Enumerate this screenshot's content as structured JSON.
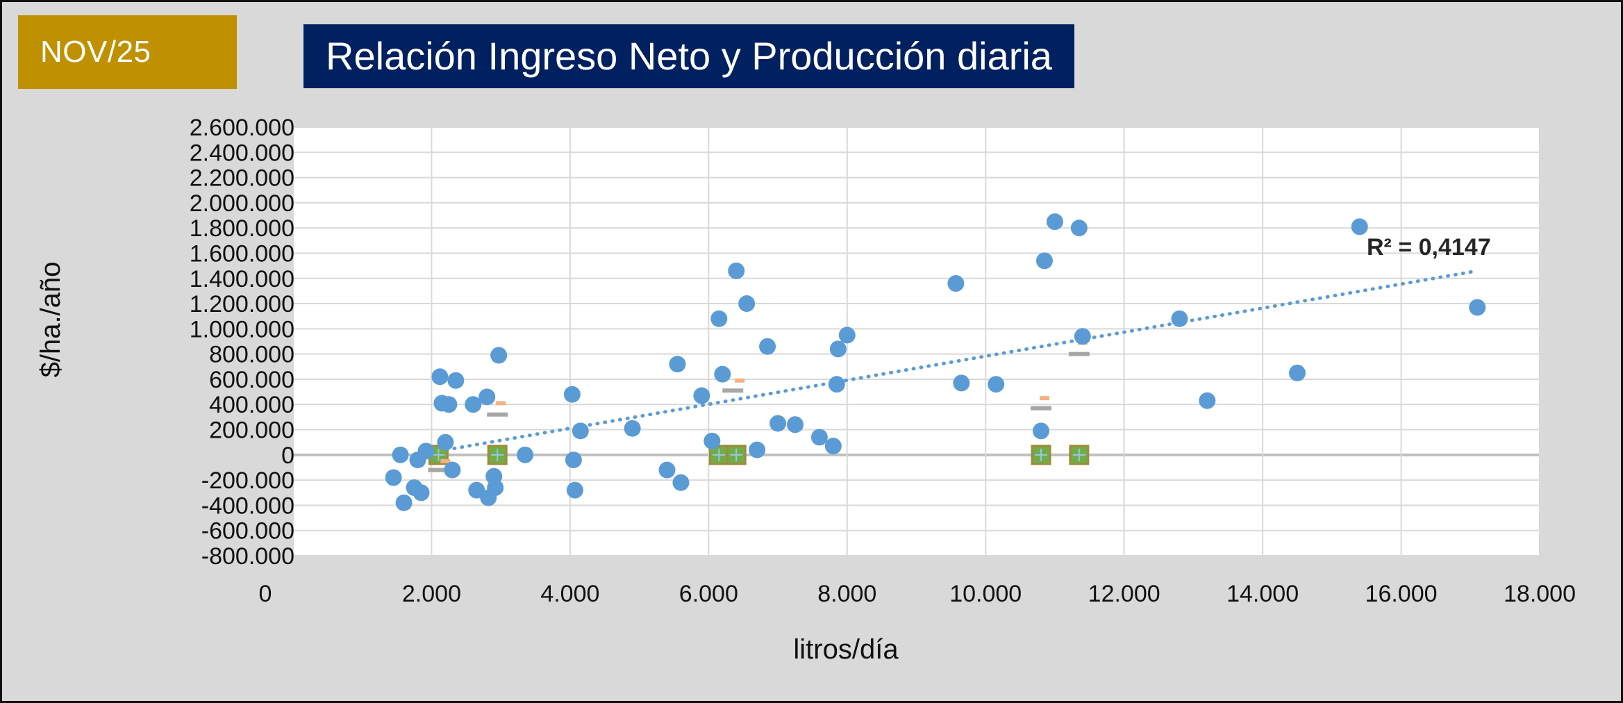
{
  "header": {
    "badge_label": "NOV/25",
    "title": "Relación Ingreso Neto y Producción diaria"
  },
  "chart_data": {
    "type": "scatter",
    "title": "Relación Ingreso Neto y Producción diaria",
    "xlabel": "litros/día",
    "ylabel": "$/ha./año",
    "xlim": [
      0,
      18000
    ],
    "ylim": [
      -800000,
      2600000
    ],
    "x_ticks": [
      0,
      2000,
      4000,
      6000,
      8000,
      10000,
      12000,
      14000,
      16000,
      18000
    ],
    "x_tick_labels": [
      "0",
      "2.000",
      "4.000",
      "6.000",
      "8.000",
      "10.000",
      "12.000",
      "14.000",
      "16.000",
      "18.000"
    ],
    "y_ticks": [
      2600000,
      2400000,
      2200000,
      2000000,
      1800000,
      1600000,
      1400000,
      1200000,
      1000000,
      800000,
      600000,
      400000,
      200000,
      0,
      -200000,
      -400000,
      -600000,
      -800000
    ],
    "y_tick_labels": [
      "2.600.000",
      "2.400.000",
      "2.200.000",
      "2.000.000",
      "1.800.000",
      "1.600.000",
      "1.400.000",
      "1.200.000",
      "1.000.000",
      "800.000",
      "600.000",
      "400.000",
      "200.000",
      "0",
      "-200.000",
      "-400.000",
      "-600.000",
      "-800.000"
    ],
    "grid": true,
    "legend": "none",
    "colors": {
      "points": "#5b9bd5",
      "trendline": "#5b9bd5",
      "square_fill": "#70ad47",
      "square_edge": "#a08a3c",
      "cross": "#9dc3e6",
      "dash_gray": "#a6a6a6",
      "dash_orange": "#f4b183",
      "zero_line": "#bfbfbf",
      "grid": "#d9d9d9"
    },
    "series": [
      {
        "marker": "circle",
        "x": [
          1450,
          1550,
          1600,
          1750,
          1800,
          1850,
          1920,
          2120,
          2150,
          2200,
          2250,
          2300,
          2350,
          2600,
          2650,
          2800,
          2820,
          2900,
          2920,
          2970,
          3350,
          4030,
          4050,
          4070,
          4150,
          4900,
          5400,
          5550,
          5600,
          5900,
          6050,
          6150,
          6200,
          6400,
          6550,
          6700,
          6850,
          7000,
          7250,
          7600,
          7800,
          7850,
          7870,
          8000,
          9570,
          9650,
          10150,
          10800,
          10850,
          11000,
          11350,
          11400,
          12800,
          13200,
          14500,
          15400,
          17100
        ],
        "y": [
          -180000,
          0,
          -380000,
          -260000,
          -40000,
          -300000,
          30000,
          620000,
          410000,
          100000,
          400000,
          -120000,
          590000,
          400000,
          -280000,
          460000,
          -340000,
          -170000,
          -260000,
          790000,
          0,
          480000,
          -40000,
          -280000,
          190000,
          210000,
          -120000,
          720000,
          -220000,
          470000,
          110000,
          1080000,
          640000,
          1460000,
          1200000,
          40000,
          860000,
          250000,
          240000,
          140000,
          70000,
          560000,
          840000,
          950000,
          1360000,
          570000,
          560000,
          190000,
          1540000,
          1850000,
          1800000,
          940000,
          1080000,
          430000,
          650000,
          1810000,
          1170000
        ]
      },
      {
        "marker": "square",
        "x": [
          2100,
          2950,
          6150,
          6400,
          10800,
          11350
        ],
        "y": [
          0,
          0,
          0,
          0,
          0,
          0
        ]
      },
      {
        "marker": "dash-gray",
        "x": [
          2100,
          2950,
          6350,
          10800,
          11350
        ],
        "y": [
          -120000,
          320000,
          510000,
          370000,
          800000
        ]
      },
      {
        "marker": "dash-orange",
        "x": [
          2200,
          3000,
          6450,
          10850,
          11400
        ],
        "y": [
          -50000,
          410000,
          590000,
          450000,
          890000
        ]
      }
    ],
    "trendline": {
      "type": "linear",
      "x": [
        2000,
        17100
      ],
      "y": [
        20000,
        1460000
      ],
      "label": "R² = 0,4147"
    }
  }
}
